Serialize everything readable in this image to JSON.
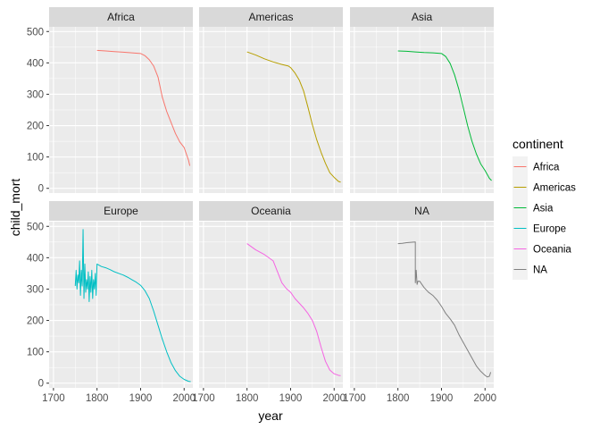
{
  "chart_data": {
    "type": "line",
    "layout": "faceted small multiples (2 rows x 3 columns)",
    "xlabel": "year",
    "ylabel": "child_mort",
    "xlim": [
      1690,
      2020
    ],
    "ylim": [
      -15,
      515
    ],
    "x_ticks": [
      1700,
      1800,
      1900,
      2000
    ],
    "y_ticks": [
      0,
      100,
      200,
      300,
      400,
      500
    ],
    "grid": true,
    "legend": {
      "title": "continent",
      "placement": "right",
      "entries": [
        "Africa",
        "Americas",
        "Asia",
        "Europe",
        "Oceania",
        "NA"
      ]
    },
    "series": [
      {
        "name": "Africa",
        "color": "#F8766D",
        "x": [
          1800,
          1820,
          1840,
          1860,
          1880,
          1900,
          1910,
          1920,
          1930,
          1940,
          1950,
          1960,
          1970,
          1980,
          1990,
          2000,
          2010,
          2013
        ],
        "values": [
          440,
          438,
          436,
          434,
          432,
          430,
          423,
          410,
          390,
          355,
          290,
          245,
          210,
          175,
          148,
          130,
          90,
          72
        ]
      },
      {
        "name": "Americas",
        "color": "#B79F00",
        "x": [
          1800,
          1820,
          1840,
          1860,
          1880,
          1895,
          1900,
          1910,
          1920,
          1930,
          1940,
          1950,
          1960,
          1970,
          1980,
          1990,
          2000,
          2010,
          2015
        ],
        "values": [
          435,
          425,
          413,
          403,
          395,
          390,
          385,
          368,
          345,
          310,
          258,
          203,
          155,
          115,
          80,
          50,
          35,
          22,
          20
        ]
      },
      {
        "name": "Asia",
        "color": "#00BA38",
        "x": [
          1800,
          1820,
          1840,
          1860,
          1880,
          1900,
          1910,
          1920,
          1930,
          1940,
          1950,
          1960,
          1970,
          1980,
          1990,
          2000,
          2010,
          2015
        ],
        "values": [
          438,
          437,
          435,
          433,
          432,
          430,
          420,
          398,
          362,
          315,
          258,
          200,
          150,
          110,
          78,
          57,
          32,
          25
        ]
      },
      {
        "name": "Europe",
        "color": "#00BFC4",
        "x": [
          1750,
          1752,
          1754,
          1756,
          1758,
          1760,
          1762,
          1764,
          1766,
          1768,
          1770,
          1772,
          1774,
          1776,
          1778,
          1780,
          1782,
          1784,
          1786,
          1788,
          1790,
          1792,
          1794,
          1796,
          1798,
          1800,
          1810,
          1820,
          1830,
          1840,
          1850,
          1860,
          1870,
          1880,
          1890,
          1900,
          1910,
          1920,
          1930,
          1940,
          1950,
          1960,
          1970,
          1980,
          1990,
          2000,
          2010,
          2015
        ],
        "values": [
          310,
          360,
          300,
          345,
          320,
          390,
          280,
          360,
          310,
          490,
          270,
          380,
          290,
          330,
          300,
          355,
          260,
          340,
          290,
          360,
          270,
          330,
          300,
          350,
          280,
          380,
          372,
          368,
          362,
          355,
          350,
          345,
          338,
          330,
          322,
          312,
          295,
          270,
          230,
          185,
          140,
          100,
          65,
          40,
          22,
          12,
          6,
          5
        ]
      },
      {
        "name": "Oceania",
        "color": "#F564E3",
        "x": [
          1800,
          1820,
          1840,
          1860,
          1870,
          1880,
          1890,
          1900,
          1910,
          1920,
          1930,
          1940,
          1950,
          1960,
          1970,
          1980,
          1990,
          2000,
          2010,
          2015
        ],
        "values": [
          445,
          425,
          410,
          390,
          355,
          320,
          302,
          290,
          270,
          255,
          240,
          222,
          200,
          165,
          115,
          70,
          42,
          30,
          25,
          24
        ]
      },
      {
        "name": "NA",
        "color": "#808080",
        "x": [
          1800,
          1810,
          1820,
          1830,
          1840,
          1840,
          1842,
          1844,
          1846,
          1850,
          1860,
          1870,
          1880,
          1890,
          1900,
          1910,
          1920,
          1930,
          1940,
          1950,
          1960,
          1970,
          1980,
          1990,
          2000,
          2005,
          2010,
          2013
        ],
        "values": [
          445,
          446,
          448,
          449,
          450,
          320,
          360,
          315,
          325,
          325,
          305,
          290,
          280,
          265,
          245,
          222,
          205,
          185,
          155,
          130,
          105,
          80,
          55,
          38,
          25,
          20,
          22,
          35
        ]
      }
    ],
    "facets": [
      {
        "label": "Africa",
        "series": "Africa",
        "row": 0,
        "col": 0
      },
      {
        "label": "Americas",
        "series": "Americas",
        "row": 0,
        "col": 1
      },
      {
        "label": "Asia",
        "series": "Asia",
        "row": 0,
        "col": 2
      },
      {
        "label": "Europe",
        "series": "Europe",
        "row": 1,
        "col": 0
      },
      {
        "label": "Oceania",
        "series": "Oceania",
        "row": 1,
        "col": 1
      },
      {
        "label": "NA",
        "series": "NA",
        "row": 1,
        "col": 2
      }
    ]
  },
  "colors": {
    "panel_bg": "#EBEBEB",
    "strip_bg": "#D9D9D9",
    "grid": "#FFFFFF",
    "legend_key_bg": "#F2F2F2"
  }
}
